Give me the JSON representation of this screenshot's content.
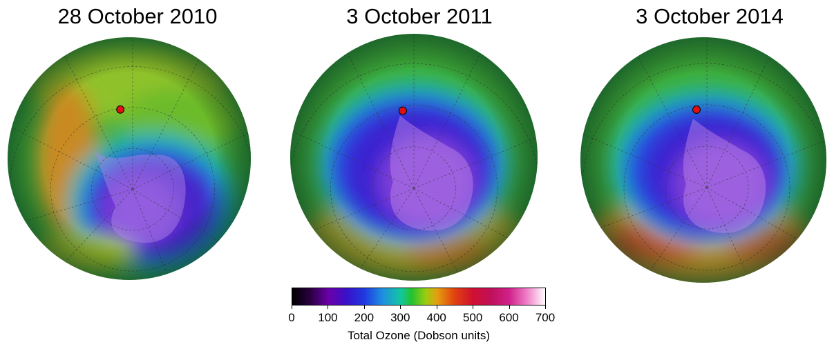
{
  "panels": [
    {
      "date": "28 October 2010",
      "marker": "red-location-marker"
    },
    {
      "date": "3 October 2011",
      "marker": "red-location-marker"
    },
    {
      "date": "3 October 2014",
      "marker": "red-location-marker"
    }
  ],
  "colorbar": {
    "label": "Total Ozone (Dobson units)",
    "min": 0,
    "max": 700,
    "ticks": [
      "0",
      "100",
      "200",
      "300",
      "400",
      "500",
      "600",
      "700"
    ],
    "stops": [
      {
        "value": 0,
        "color": "#000000"
      },
      {
        "value": 50,
        "color": "#2a0040"
      },
      {
        "value": 100,
        "color": "#6a00a8"
      },
      {
        "value": 150,
        "color": "#3a10c8"
      },
      {
        "value": 200,
        "color": "#1f3ae0"
      },
      {
        "value": 250,
        "color": "#1f8fe0"
      },
      {
        "value": 300,
        "color": "#12c7a0"
      },
      {
        "value": 330,
        "color": "#22c230"
      },
      {
        "value": 370,
        "color": "#9ccc10"
      },
      {
        "value": 400,
        "color": "#e5a010"
      },
      {
        "value": 450,
        "color": "#e04010"
      },
      {
        "value": 500,
        "color": "#d01030"
      },
      {
        "value": 550,
        "color": "#c0105a"
      },
      {
        "value": 600,
        "color": "#d0208a"
      },
      {
        "value": 650,
        "color": "#f080c8"
      },
      {
        "value": 700,
        "color": "#ffffff"
      }
    ]
  }
}
